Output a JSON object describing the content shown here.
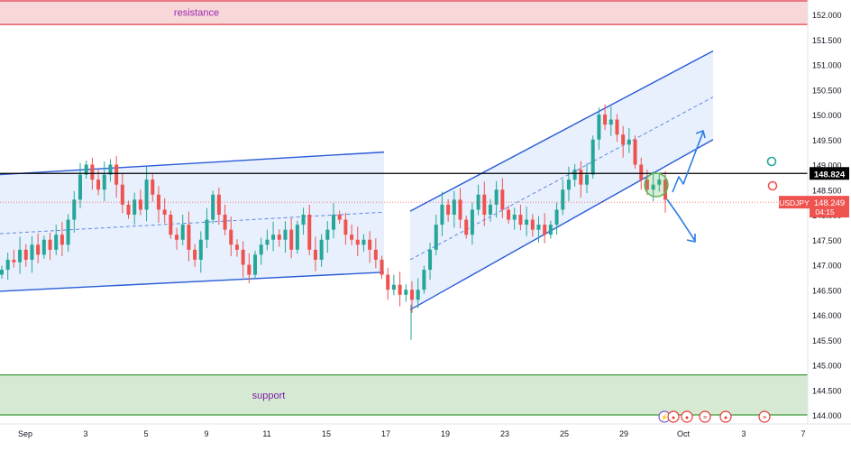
{
  "symbol": "USDJPY",
  "colors": {
    "up": "#26a69a",
    "down": "#ef5350",
    "channel": "#2a5bd7",
    "channel_fill": "#e3edfb",
    "resistance_fill": "#f8d7d9",
    "resistance_line": "#e0414e",
    "support_fill": "#d6ead3",
    "support_line": "#3e9b3b",
    "key_level": "#000000",
    "arrow": "#2a7de1",
    "circle": "#5cb85c"
  },
  "chart_data": {
    "type": "candlestick",
    "title": "",
    "xlabel": "",
    "ylabel": "",
    "ylim": [
      143.85,
      152.2
    ],
    "y_ticks": [
      "152.000",
      "151.500",
      "151.000",
      "150.500",
      "150.000",
      "149.500",
      "149.000",
      "148.500",
      "148.000",
      "147.500",
      "147.000",
      "146.500",
      "146.000",
      "145.500",
      "145.000",
      "144.500",
      "144.000"
    ],
    "x_ticks": [
      "Sep",
      "3",
      "5",
      "9",
      "11",
      "15",
      "17",
      "19",
      "23",
      "25",
      "29",
      "Oct",
      "3",
      "7"
    ],
    "grid": false,
    "zones": [
      {
        "name": "resistance",
        "label": "resistance",
        "low": 151.8,
        "high": 152.2
      },
      {
        "name": "support",
        "label": "support",
        "low": 144.0,
        "high": 144.8
      }
    ],
    "key_level": {
      "value": 148.824,
      "label": "148.824"
    },
    "price_label": {
      "symbol": "USDJPY",
      "value": "148.249",
      "countdown": "04:15"
    },
    "close_series": {
      "description": "approximate closes, evenly spaced candles",
      "values": [
        146.9,
        147.1,
        147.05,
        147.3,
        147.1,
        147.4,
        147.2,
        147.5,
        147.3,
        147.6,
        147.4,
        147.9,
        148.3,
        148.8,
        149.0,
        148.7,
        148.5,
        148.8,
        149.0,
        148.6,
        148.2,
        148.0,
        148.3,
        148.1,
        148.7,
        148.4,
        148.1,
        148.0,
        147.6,
        147.5,
        147.8,
        147.3,
        147.1,
        147.5,
        147.9,
        148.4,
        148.0,
        147.7,
        147.4,
        147.3,
        147.0,
        146.8,
        147.2,
        147.4,
        147.5,
        147.6,
        147.5,
        147.7,
        147.3,
        147.8,
        148.0,
        147.3,
        147.1,
        147.5,
        147.7,
        148.0,
        147.9,
        147.6,
        147.5,
        147.4,
        147.5,
        147.3,
        147.1,
        146.8,
        146.5,
        146.6,
        146.4,
        146.5,
        146.3,
        146.5,
        146.9,
        147.3,
        147.8,
        148.2,
        148.0,
        148.3,
        147.9,
        147.6,
        148.1,
        148.4,
        148.0,
        148.2,
        148.5,
        148.1,
        147.9,
        148.0,
        147.8,
        147.9,
        147.7,
        147.8,
        147.6,
        147.8,
        148.1,
        148.5,
        148.7,
        148.9,
        148.6,
        148.8,
        149.5,
        150.0,
        149.8,
        149.9,
        149.6,
        149.4,
        149.5,
        149.0,
        148.7,
        148.5,
        148.6,
        148.7,
        148.3
      ]
    },
    "annotations": [
      {
        "name": "left-channel",
        "type": "channel",
        "points": [
          [
            "2024-08-30",
            148.85
          ],
          [
            "2024-09-17",
            149.25
          ]
        ],
        "lower": [
          [
            "2024-08-30",
            146.5
          ],
          [
            "2024-09-17",
            146.85
          ]
        ],
        "mid": [
          [
            "2024-08-30",
            147.65
          ],
          [
            "2024-09-17",
            148.05
          ]
        ]
      },
      {
        "name": "right-channel",
        "type": "channel",
        "upper": [
          [
            "2024-09-18",
            148.0
          ],
          [
            "2024-09-30",
            151.3
          ]
        ],
        "lower": [
          [
            "2024-09-18",
            146.05
          ],
          [
            "2024-09-30",
            149.4
          ]
        ],
        "mid": [
          [
            "2024-09-18",
            147.05
          ],
          [
            "2024-09-30",
            150.35
          ]
        ]
      }
    ]
  },
  "bottom_icons": [
    {
      "name": "lightning-icon",
      "symbol": "⚡"
    },
    {
      "name": "event-icon",
      "symbol": "●"
    },
    {
      "name": "event-icon",
      "symbol": "●"
    },
    {
      "name": "us-flag-icon",
      "symbol": "≡"
    },
    {
      "name": "event-icon",
      "symbol": "●"
    },
    {
      "name": "us-flag-icon",
      "symbol": "≡"
    }
  ]
}
